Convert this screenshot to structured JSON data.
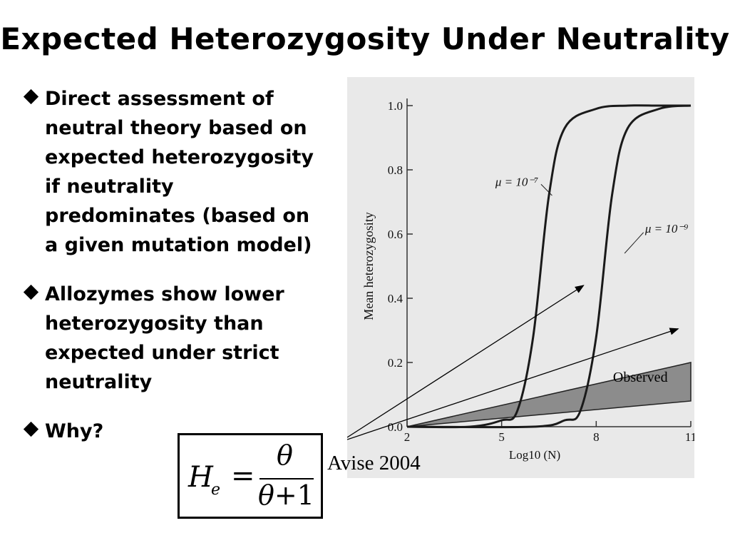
{
  "slide": {
    "title": "Expected Heterozygosity Under Neutrality",
    "bullets": [
      "Direct assessment of\nneutral theory based on\nexpected heterozygosity\nif neutrality\npredominates (based on\na given mutation model)",
      "Allozymes show lower\nheterozygosity than\nexpected under strict\nneutrality",
      "Why?"
    ],
    "citation": "Avise 2004"
  },
  "formula": {
    "lhs": "H",
    "lhs_subscript": "e",
    "equals": "=",
    "numerator": "θ",
    "denominator_var": "θ",
    "denominator_rest": "+1"
  },
  "chart_data": {
    "type": "line",
    "xlabel": "Log10 (N)",
    "ylabel": "Mean heterozygosity",
    "xticks": [
      "2",
      "5",
      "8",
      "11"
    ],
    "yticks": [
      "0.0",
      "0.2",
      "0.4",
      "0.6",
      "0.8",
      "1.0"
    ],
    "xlim": [
      2,
      11
    ],
    "ylim": [
      0,
      1
    ],
    "series": [
      {
        "name": "μ = 10⁻⁷",
        "x": [
          2,
          4,
          5,
          5.5,
          6,
          6.5,
          7,
          8,
          9,
          10,
          11
        ],
        "y": [
          0,
          0,
          0.02,
          0.05,
          0.28,
          0.72,
          0.93,
          0.99,
          1,
          1,
          1
        ]
      },
      {
        "name": "μ = 10⁻⁹",
        "x": [
          2,
          6,
          7,
          7.5,
          8,
          8.5,
          9,
          10,
          11
        ],
        "y": [
          0,
          0,
          0.02,
          0.05,
          0.28,
          0.72,
          0.93,
          0.99,
          1
        ]
      }
    ],
    "observed_region": {
      "label": "Observed",
      "upper": {
        "x": [
          2,
          11
        ],
        "y": [
          0.0,
          0.2
        ]
      },
      "lower": {
        "x": [
          2,
          11
        ],
        "y": [
          0.0,
          0.08
        ]
      }
    },
    "annotations": [
      {
        "text": "μ = 10⁻⁷",
        "series": 0
      },
      {
        "text": "μ = 10⁻⁹",
        "series": 1
      }
    ],
    "colors": {
      "curves": "#1a1a1a",
      "observed_fill": "#8c8c8c",
      "background": "#e9e9e9",
      "arrows": "#000000"
    }
  }
}
